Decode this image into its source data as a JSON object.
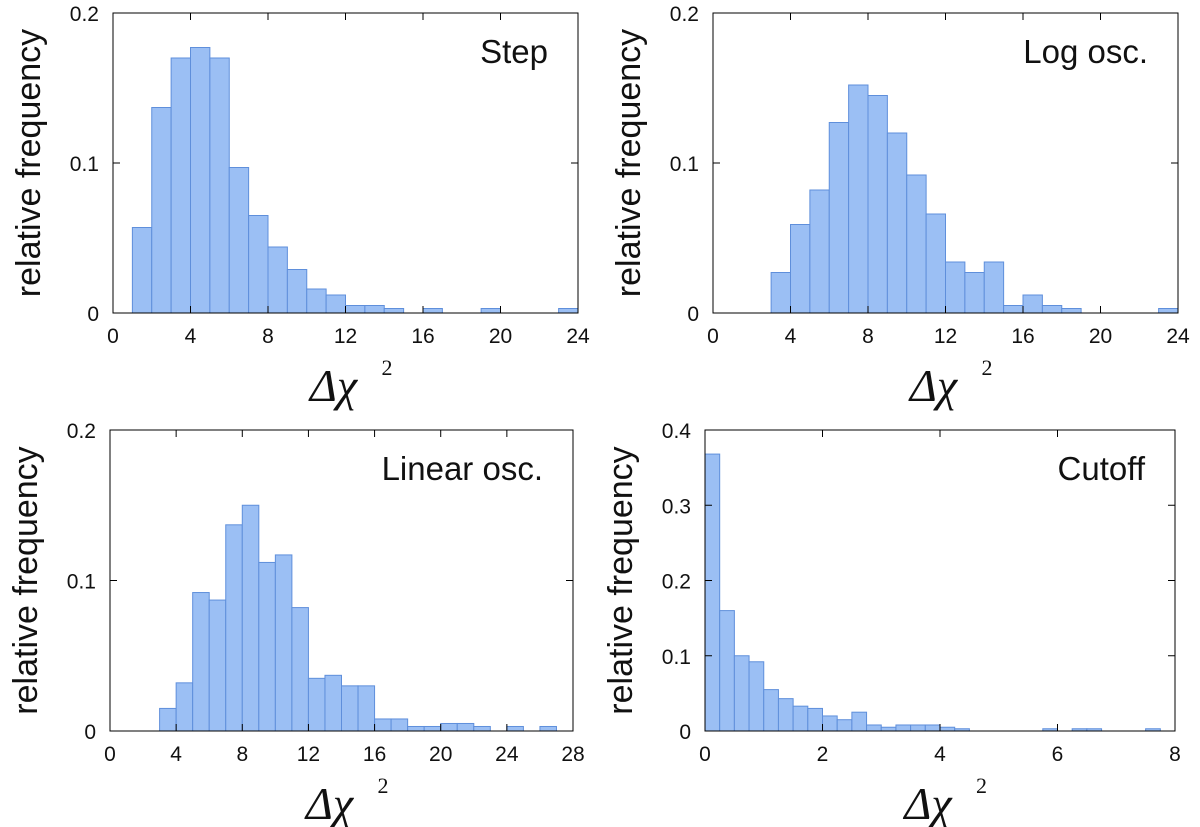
{
  "chart_data": [
    {
      "type": "bar",
      "title": "Step",
      "xlabel": "Δχ",
      "xlabel_superscript": "2",
      "ylabel": "relative frequency",
      "xlim": [
        0,
        24
      ],
      "ylim": [
        0,
        0.2
      ],
      "xticks": [
        0,
        4,
        8,
        12,
        16,
        20,
        24
      ],
      "xtick_labels": [
        "0",
        "4",
        "8",
        "12",
        "16",
        "20",
        "24"
      ],
      "yticks": [
        0,
        0.1,
        0.2
      ],
      "ytick_labels": [
        "0",
        "0.1",
        "0.2"
      ],
      "bin_width": 1,
      "bin_starts": [
        1,
        2,
        3,
        4,
        5,
        6,
        7,
        8,
        9,
        10,
        11,
        12,
        13,
        14,
        15,
        16,
        17,
        18,
        19,
        20,
        21,
        22,
        23
      ],
      "values": [
        0.057,
        0.137,
        0.17,
        0.177,
        0.17,
        0.097,
        0.065,
        0.044,
        0.029,
        0.016,
        0.012,
        0.005,
        0.005,
        0.003,
        0,
        0.003,
        0,
        0,
        0.003,
        0,
        0,
        0,
        0.003
      ]
    },
    {
      "type": "bar",
      "title": "Log osc.",
      "xlabel": "Δχ",
      "xlabel_superscript": "2",
      "ylabel": "relative frequency",
      "xlim": [
        0,
        24
      ],
      "ylim": [
        0,
        0.2
      ],
      "xticks": [
        0,
        4,
        8,
        12,
        16,
        20,
        24
      ],
      "xtick_labels": [
        "0",
        "4",
        "8",
        "12",
        "16",
        "20",
        "24"
      ],
      "yticks": [
        0,
        0.1,
        0.2
      ],
      "ytick_labels": [
        "0",
        "0.1",
        "0.2"
      ],
      "bin_width": 1,
      "bin_starts": [
        3,
        4,
        5,
        6,
        7,
        8,
        9,
        10,
        11,
        12,
        13,
        14,
        15,
        16,
        17,
        18,
        19,
        20,
        21,
        22,
        23
      ],
      "values": [
        0.027,
        0.059,
        0.082,
        0.127,
        0.152,
        0.145,
        0.12,
        0.092,
        0.066,
        0.034,
        0.027,
        0.034,
        0.005,
        0.012,
        0.005,
        0.003,
        0,
        0,
        0,
        0,
        0.003
      ]
    },
    {
      "type": "bar",
      "title": "Linear osc.",
      "xlabel": "Δχ",
      "xlabel_superscript": "2",
      "ylabel": "relative frequency",
      "xlim": [
        0,
        28
      ],
      "ylim": [
        0,
        0.2
      ],
      "xticks": [
        0,
        4,
        8,
        12,
        16,
        20,
        24,
        28
      ],
      "xtick_labels": [
        "0",
        "4",
        "8",
        "12",
        "16",
        "20",
        "24",
        "28"
      ],
      "yticks": [
        0,
        0.1,
        0.2
      ],
      "ytick_labels": [
        "0",
        "0.1",
        "0.2"
      ],
      "bin_width": 1,
      "bin_starts": [
        3,
        4,
        5,
        6,
        7,
        8,
        9,
        10,
        11,
        12,
        13,
        14,
        15,
        16,
        17,
        18,
        19,
        20,
        21,
        22,
        23,
        24,
        25,
        26
      ],
      "values": [
        0.015,
        0.032,
        0.092,
        0.087,
        0.137,
        0.15,
        0.112,
        0.117,
        0.082,
        0.035,
        0.037,
        0.03,
        0.03,
        0.008,
        0.008,
        0.003,
        0.003,
        0.005,
        0.005,
        0.003,
        0,
        0.003,
        0,
        0.003
      ]
    },
    {
      "type": "bar",
      "title": "Cutoff",
      "xlabel": "Δχ",
      "xlabel_superscript": "2",
      "ylabel": "relative frequency",
      "xlim": [
        0,
        8
      ],
      "ylim": [
        0,
        0.4
      ],
      "xticks": [
        0,
        2,
        4,
        6,
        8
      ],
      "xtick_labels": [
        "0",
        "2",
        "4",
        "6",
        "8"
      ],
      "yticks": [
        0,
        0.1,
        0.2,
        0.3,
        0.4
      ],
      "ytick_labels": [
        "0",
        "0.1",
        "0.2",
        "0.3",
        "0.4"
      ],
      "bin_width": 0.25,
      "bin_starts": [
        0,
        0.25,
        0.5,
        0.75,
        1.0,
        1.25,
        1.5,
        1.75,
        2.0,
        2.25,
        2.5,
        2.75,
        3.0,
        3.25,
        3.5,
        3.75,
        4.0,
        4.25,
        4.5,
        4.75,
        5.0,
        5.25,
        5.5,
        5.75,
        6.0,
        6.25,
        6.5,
        6.75,
        7.0,
        7.25,
        7.5
      ],
      "values": [
        0.368,
        0.16,
        0.1,
        0.092,
        0.055,
        0.043,
        0.033,
        0.03,
        0.02,
        0.015,
        0.025,
        0.008,
        0.005,
        0.008,
        0.008,
        0.008,
        0.005,
        0.003,
        0,
        0,
        0,
        0,
        0,
        0.003,
        0,
        0.003,
        0.003,
        0,
        0,
        0,
        0.003
      ]
    }
  ]
}
